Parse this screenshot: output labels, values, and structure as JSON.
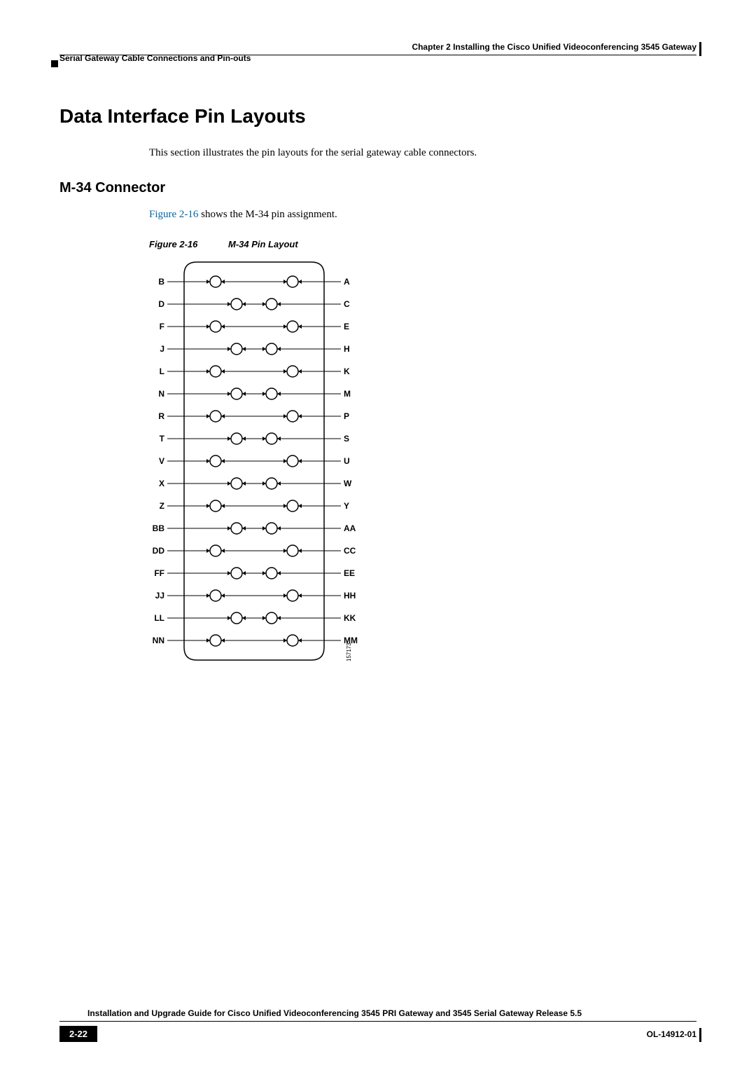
{
  "header": {
    "chapter": "Chapter 2      Installing the Cisco Unified Videoconferencing 3545 Gateway",
    "section": "Serial Gateway Cable Connections and Pin-outs"
  },
  "h1": "Data Interface Pin Layouts",
  "intro": "This section illustrates the pin layouts for the serial gateway cable connectors.",
  "h2": "M-34 Connector",
  "sub_intro_link": "Figure 2-16",
  "sub_intro_rest": " shows the M-34 pin assignment.",
  "fig_caption_num": "Figure 2-16",
  "fig_caption_title": "M-34 Pin Layout",
  "diagram": {
    "rows": [
      {
        "left": "B",
        "right": "A",
        "offset": "out"
      },
      {
        "left": "D",
        "right": "C",
        "offset": "in"
      },
      {
        "left": "F",
        "right": "E",
        "offset": "out"
      },
      {
        "left": "J",
        "right": "H",
        "offset": "in"
      },
      {
        "left": "L",
        "right": "K",
        "offset": "out"
      },
      {
        "left": "N",
        "right": "M",
        "offset": "in"
      },
      {
        "left": "R",
        "right": "P",
        "offset": "out"
      },
      {
        "left": "T",
        "right": "S",
        "offset": "in"
      },
      {
        "left": "V",
        "right": "U",
        "offset": "out"
      },
      {
        "left": "X",
        "right": "W",
        "offset": "in"
      },
      {
        "left": "Z",
        "right": "Y",
        "offset": "out"
      },
      {
        "left": "BB",
        "right": "AA",
        "offset": "in"
      },
      {
        "left": "DD",
        "right": "CC",
        "offset": "out"
      },
      {
        "left": "FF",
        "right": "EE",
        "offset": "in"
      },
      {
        "left": "JJ",
        "right": "HH",
        "offset": "out"
      },
      {
        "left": "LL",
        "right": "KK",
        "offset": "in"
      },
      {
        "left": "NN",
        "right": "MM",
        "offset": "out"
      }
    ],
    "outline_color": "#000000",
    "id_label": "157173"
  },
  "footer": {
    "title": "Installation and Upgrade Guide for Cisco Unified Videoconferencing 3545 PRI Gateway and 3545 Serial Gateway Release 5.5",
    "page": "2-22",
    "doc_id": "OL-14912-01"
  }
}
